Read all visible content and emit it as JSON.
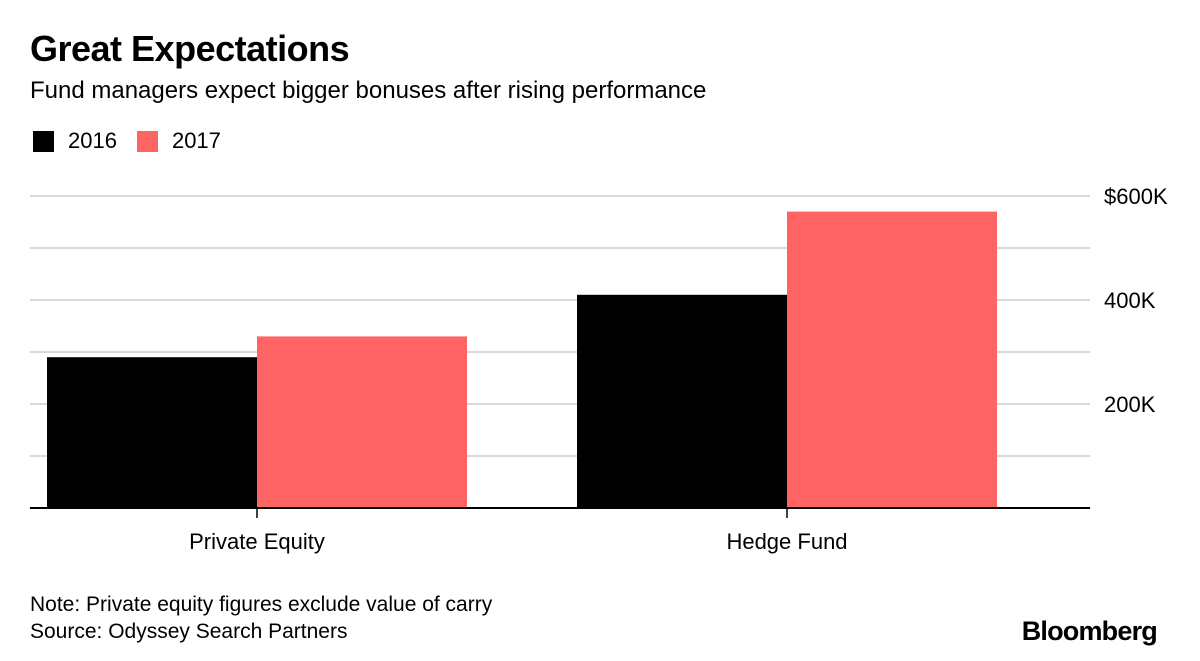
{
  "header": {
    "title": "Great Expectations",
    "subtitle": "Fund managers expect bigger bonuses after rising performance"
  },
  "footer": {
    "note": "Note: Private equity figures exclude value of carry",
    "source": "Source: Odyssey Search Partners",
    "brand": "Bloomberg"
  },
  "colors": {
    "series_2016": "#000000",
    "series_2017": "#ff6464",
    "gridline": "#d9d9d9",
    "axis": "#000000"
  },
  "chart_data": {
    "type": "bar",
    "title": "Great Expectations",
    "subtitle": "Fund managers expect bigger bonuses after rising performance",
    "xlabel": "",
    "ylabel": "",
    "categories": [
      "Private Equity",
      "Hedge Fund"
    ],
    "series": [
      {
        "name": "2016",
        "values": [
          290000,
          410000
        ]
      },
      {
        "name": "2017",
        "values": [
          330000,
          570000
        ]
      }
    ],
    "ylim": [
      0,
      600000
    ],
    "yticks": [
      {
        "value": 200000,
        "label": "200K"
      },
      {
        "value": 400000,
        "label": "400K"
      },
      {
        "value": 600000,
        "label": "$600K"
      }
    ],
    "minor_gridlines": [
      100000,
      300000,
      500000
    ],
    "legend_position": "top-left",
    "y_axis_side": "right",
    "grid": true
  }
}
